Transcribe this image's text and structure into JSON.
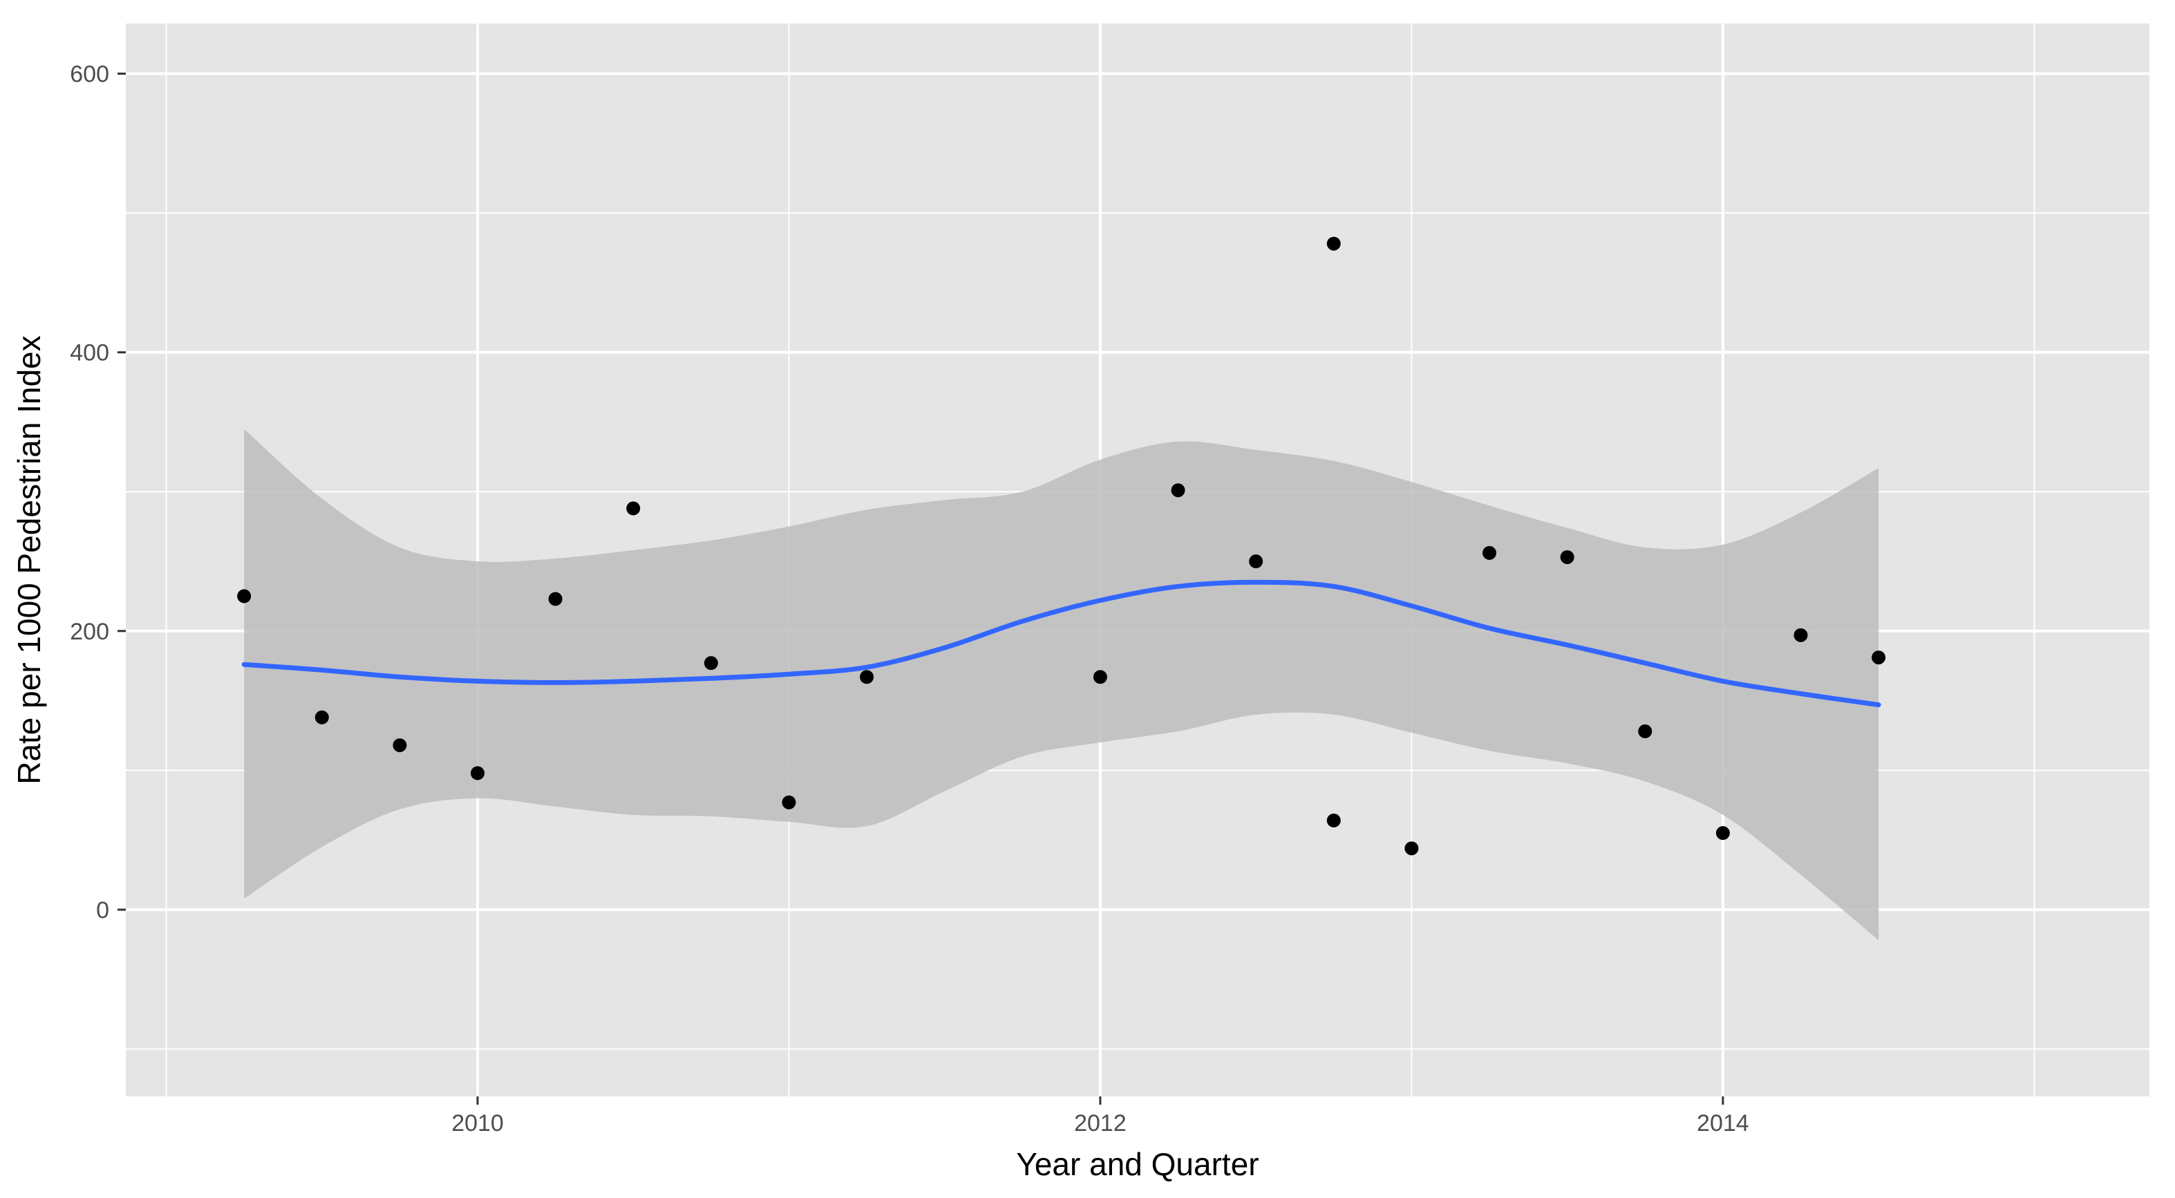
{
  "chart_data": {
    "type": "scatter",
    "title": "",
    "xlabel": "Year and Quarter",
    "ylabel": "Rate per 1000 Pedestrian Index",
    "xlim": [
      2008.87,
      2015.37
    ],
    "ylim": [
      -134,
      636
    ],
    "x_ticks": [
      2010,
      2012,
      2014
    ],
    "y_ticks": [
      0,
      200,
      400,
      600
    ],
    "grid": true,
    "legend": "none",
    "colors": {
      "panel_background": "#e5e5e5",
      "grid": "#ffffff",
      "points": "#000000",
      "smooth_line": "#3366ff",
      "confidence_band": "#bdbdbd"
    },
    "points": [
      {
        "x": 2009.25,
        "y": 225
      },
      {
        "x": 2009.5,
        "y": 138
      },
      {
        "x": 2009.75,
        "y": 118
      },
      {
        "x": 2010.0,
        "y": 98
      },
      {
        "x": 2010.25,
        "y": 223
      },
      {
        "x": 2010.5,
        "y": 288
      },
      {
        "x": 2010.75,
        "y": 177
      },
      {
        "x": 2011.0,
        "y": 77
      },
      {
        "x": 2011.25,
        "y": 167
      },
      {
        "x": 2012.0,
        "y": 167
      },
      {
        "x": 2012.25,
        "y": 301
      },
      {
        "x": 2012.5,
        "y": 250
      },
      {
        "x": 2012.75,
        "y": 478
      },
      {
        "x": 2012.75,
        "y": 64
      },
      {
        "x": 2013.0,
        "y": 44
      },
      {
        "x": 2013.25,
        "y": 256
      },
      {
        "x": 2013.5,
        "y": 253
      },
      {
        "x": 2013.75,
        "y": 128
      },
      {
        "x": 2014.0,
        "y": 55
      },
      {
        "x": 2014.25,
        "y": 197
      },
      {
        "x": 2014.5,
        "y": 181
      }
    ],
    "smooth": {
      "method": "loess",
      "x": [
        2009.25,
        2009.5,
        2009.75,
        2010.0,
        2010.25,
        2010.5,
        2010.75,
        2011.0,
        2011.25,
        2011.5,
        2011.75,
        2012.0,
        2012.25,
        2012.5,
        2012.75,
        2013.0,
        2013.25,
        2013.5,
        2013.75,
        2014.0,
        2014.25,
        2014.5
      ],
      "fit": [
        176,
        172,
        167,
        164,
        163,
        164,
        166,
        169,
        174,
        188,
        207,
        222,
        232,
        235,
        232,
        218,
        202,
        190,
        177,
        164,
        155,
        147
      ],
      "lower": [
        8,
        45,
        72,
        80,
        74,
        68,
        67,
        63,
        60,
        85,
        110,
        120,
        128,
        140,
        140,
        127,
        114,
        105,
        92,
        68,
        25,
        -22
      ],
      "upper": [
        345,
        295,
        260,
        250,
        252,
        258,
        265,
        275,
        287,
        294,
        300,
        323,
        336,
        330,
        322,
        307,
        290,
        274,
        260,
        262,
        285,
        317
      ]
    }
  }
}
